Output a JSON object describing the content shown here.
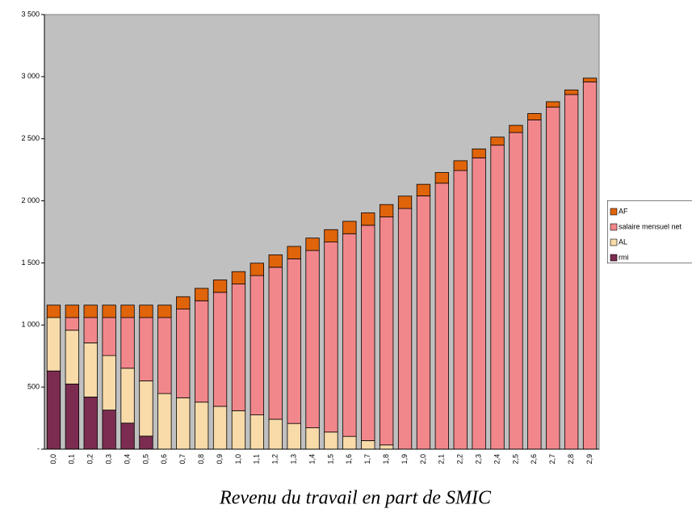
{
  "chart_data": {
    "type": "stacked-bar",
    "title": "Revenu du travail en part de SMIC",
    "categories": [
      "0,0",
      "0,1",
      "0,2",
      "0,3",
      "0,4",
      "0,5",
      "0,6",
      "0,7",
      "0,8",
      "0,9",
      "1,0",
      "1,1",
      "1,2",
      "1,3",
      "1,4",
      "1,5",
      "1,6",
      "1,7",
      "1,8",
      "1,9",
      "2,0",
      "2,1",
      "2,2",
      "2,3",
      "2,4",
      "2,5",
      "2,6",
      "2,7",
      "2,8",
      "2,9"
    ],
    "series": [
      {
        "name": "rmi",
        "color": "#7b2c50",
        "values": [
          630,
          525,
          420,
          315,
          210,
          105,
          0,
          0,
          0,
          0,
          0,
          0,
          0,
          0,
          0,
          0,
          0,
          0,
          0,
          0,
          0,
          0,
          0,
          0,
          0,
          0,
          0,
          0,
          0,
          0
        ]
      },
      {
        "name": "AL",
        "color": "#f8dba8",
        "values": [
          430,
          433,
          436,
          439,
          442,
          445,
          448,
          414,
          379,
          345,
          310,
          276,
          241,
          207,
          172,
          138,
          103,
          69,
          34,
          0,
          0,
          0,
          0,
          0,
          0,
          0,
          0,
          0,
          0,
          0
        ]
      },
      {
        "name": "salaire mensuel net",
        "color": "#f2878b",
        "values": [
          0,
          102,
          204,
          306,
          408,
          510,
          612,
          714,
          816,
          918,
          1020,
          1122,
          1224,
          1326,
          1428,
          1530,
          1632,
          1734,
          1836,
          1938,
          2040,
          2142,
          2244,
          2346,
          2448,
          2550,
          2652,
          2754,
          2856,
          2958
        ]
      },
      {
        "name": "AF",
        "color": "#e0640a",
        "values": [
          100,
          100,
          100,
          100,
          100,
          100,
          100,
          100,
          100,
          100,
          100,
          100,
          100,
          100,
          100,
          100,
          100,
          100,
          100,
          100,
          93,
          86,
          79,
          72,
          65,
          58,
          51,
          44,
          37,
          30
        ]
      }
    ],
    "ylim": [
      0,
      3500
    ],
    "yticks": [
      {
        "value": 0,
        "label": "-"
      },
      500,
      {
        "value": 1000,
        "label": "1 000"
      },
      {
        "value": 1500,
        "label": "1 500"
      },
      {
        "value": 2000,
        "label": "2 000"
      },
      {
        "value": 2500,
        "label": "2 500"
      },
      {
        "value": 3000,
        "label": "3 000"
      },
      {
        "value": 3500,
        "label": "3 500"
      }
    ],
    "legend": "right",
    "background": "#c0c0c0"
  }
}
